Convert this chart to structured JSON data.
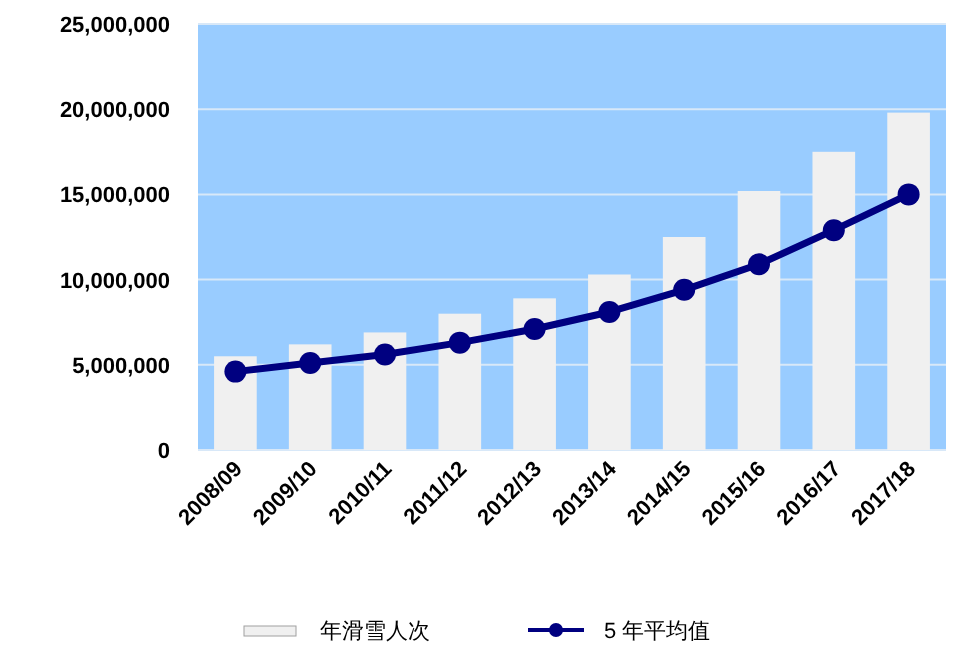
{
  "chart_data": {
    "type": "bar",
    "categories": [
      "2008/09",
      "2009/10",
      "2010/11",
      "2011/12",
      "2012/13",
      "2013/14",
      "2014/15",
      "2015/16",
      "2016/17",
      "2017/18"
    ],
    "series": [
      {
        "name": "年滑雪人次",
        "color": "#f0f0f0",
        "values": [
          5500000,
          6200000,
          6900000,
          8000000,
          8900000,
          10300000,
          12500000,
          15200000,
          17500000,
          19800000
        ]
      },
      {
        "name": "5 年平均值",
        "type": "line",
        "color": "#000080",
        "marker": "circle",
        "values": [
          4600000,
          5100000,
          5600000,
          6300000,
          7100000,
          8100000,
          9400000,
          10900000,
          12900000,
          15000000
        ]
      }
    ],
    "ylim": [
      0,
      25000000
    ],
    "yticks": [
      {
        "value": 0,
        "label": "0"
      },
      {
        "value": 5000000,
        "label": "5,000,000"
      },
      {
        "value": 10000000,
        "label": "10,000,000"
      },
      {
        "value": 15000000,
        "label": "15,000,000"
      },
      {
        "value": 20000000,
        "label": "20,000,000"
      },
      {
        "value": 25000000,
        "label": "25,000,000"
      }
    ],
    "grid": "y",
    "legend": "bottom"
  }
}
